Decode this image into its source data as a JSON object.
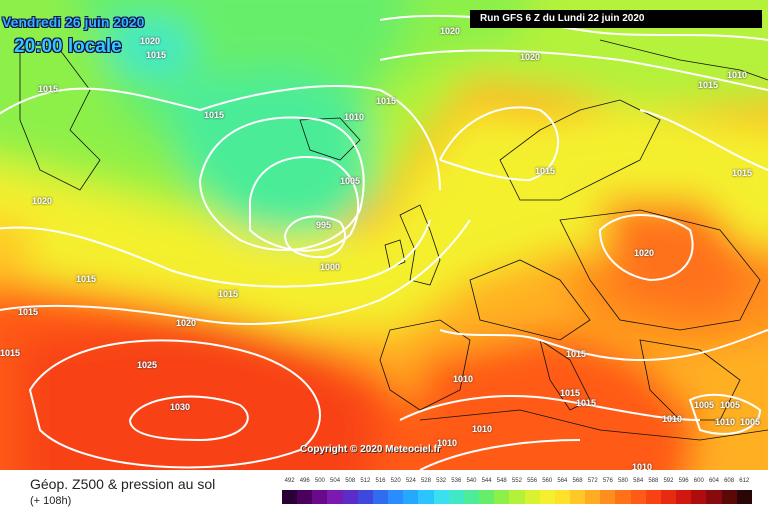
{
  "header": {
    "date": "Vendredi 26 juin 2020",
    "time": "20:00 locale",
    "run": "Run GFS 6 Z du Lundi 22 juin 2020"
  },
  "copyright": "Copyright © 2020 Meteociel.fr",
  "footer": {
    "title": "Géop. Z500 & pression au sol",
    "subtitle": "(+ 108h)"
  },
  "isobar_labels": [
    {
      "id": "a",
      "text": "1020"
    },
    {
      "id": "b",
      "text": "1015"
    },
    {
      "id": "c",
      "text": "1015"
    },
    {
      "id": "d",
      "text": "1020"
    },
    {
      "id": "e",
      "text": "1020"
    },
    {
      "id": "f",
      "text": "1010"
    },
    {
      "id": "g",
      "text": "1015"
    },
    {
      "id": "h",
      "text": "1015"
    },
    {
      "id": "i",
      "text": "1010"
    },
    {
      "id": "j",
      "text": "1015"
    },
    {
      "id": "k",
      "text": "1005"
    },
    {
      "id": "l",
      "text": "1015"
    },
    {
      "id": "m",
      "text": "1020"
    },
    {
      "id": "n",
      "text": "995"
    },
    {
      "id": "o",
      "text": "1000"
    },
    {
      "id": "p",
      "text": "1015"
    },
    {
      "id": "q",
      "text": "1015"
    },
    {
      "id": "r",
      "text": "1015"
    },
    {
      "id": "s",
      "text": "1020"
    },
    {
      "id": "t",
      "text": "1015"
    },
    {
      "id": "u",
      "text": "1020"
    },
    {
      "id": "v",
      "text": "1025"
    },
    {
      "id": "w",
      "text": "1015"
    },
    {
      "id": "x",
      "text": "1010"
    },
    {
      "id": "y",
      "text": "1030"
    },
    {
      "id": "z",
      "text": "1015"
    },
    {
      "id": "aa",
      "text": "1015"
    },
    {
      "id": "ab",
      "text": "1010"
    },
    {
      "id": "ac",
      "text": "1010"
    },
    {
      "id": "ad",
      "text": "1005"
    },
    {
      "id": "ae",
      "text": "1005"
    },
    {
      "id": "af",
      "text": "1005"
    },
    {
      "id": "ag",
      "text": "1010"
    },
    {
      "id": "ah",
      "text": "1010"
    },
    {
      "id": "ai",
      "text": "1010"
    },
    {
      "id": "aj",
      "text": "1015"
    }
  ],
  "legend": {
    "values": [
      "492",
      "496",
      "500",
      "504",
      "508",
      "512",
      "516",
      "520",
      "524",
      "528",
      "532",
      "536",
      "540",
      "544",
      "548",
      "552",
      "556",
      "560",
      "564",
      "568",
      "572",
      "576",
      "580",
      "584",
      "588",
      "592",
      "596",
      "600",
      "604",
      "608",
      "612"
    ],
    "colors": [
      "#2b0034",
      "#4b0060",
      "#6a0a8a",
      "#7a1ab0",
      "#5b2cc8",
      "#3f48dc",
      "#2f6cf0",
      "#2b8cff",
      "#27a8ff",
      "#2bc4ff",
      "#3ae0f0",
      "#40e8c8",
      "#4cec98",
      "#66ee6a",
      "#8cf048",
      "#b4f23a",
      "#d8f232",
      "#f4f02e",
      "#ffe02a",
      "#ffc826",
      "#ffac22",
      "#ff8e1e",
      "#ff721a",
      "#ff5a16",
      "#f84214",
      "#e82a12",
      "#d01810",
      "#b00c0e",
      "#880a0c",
      "#5a0808",
      "#2a0606"
    ]
  }
}
